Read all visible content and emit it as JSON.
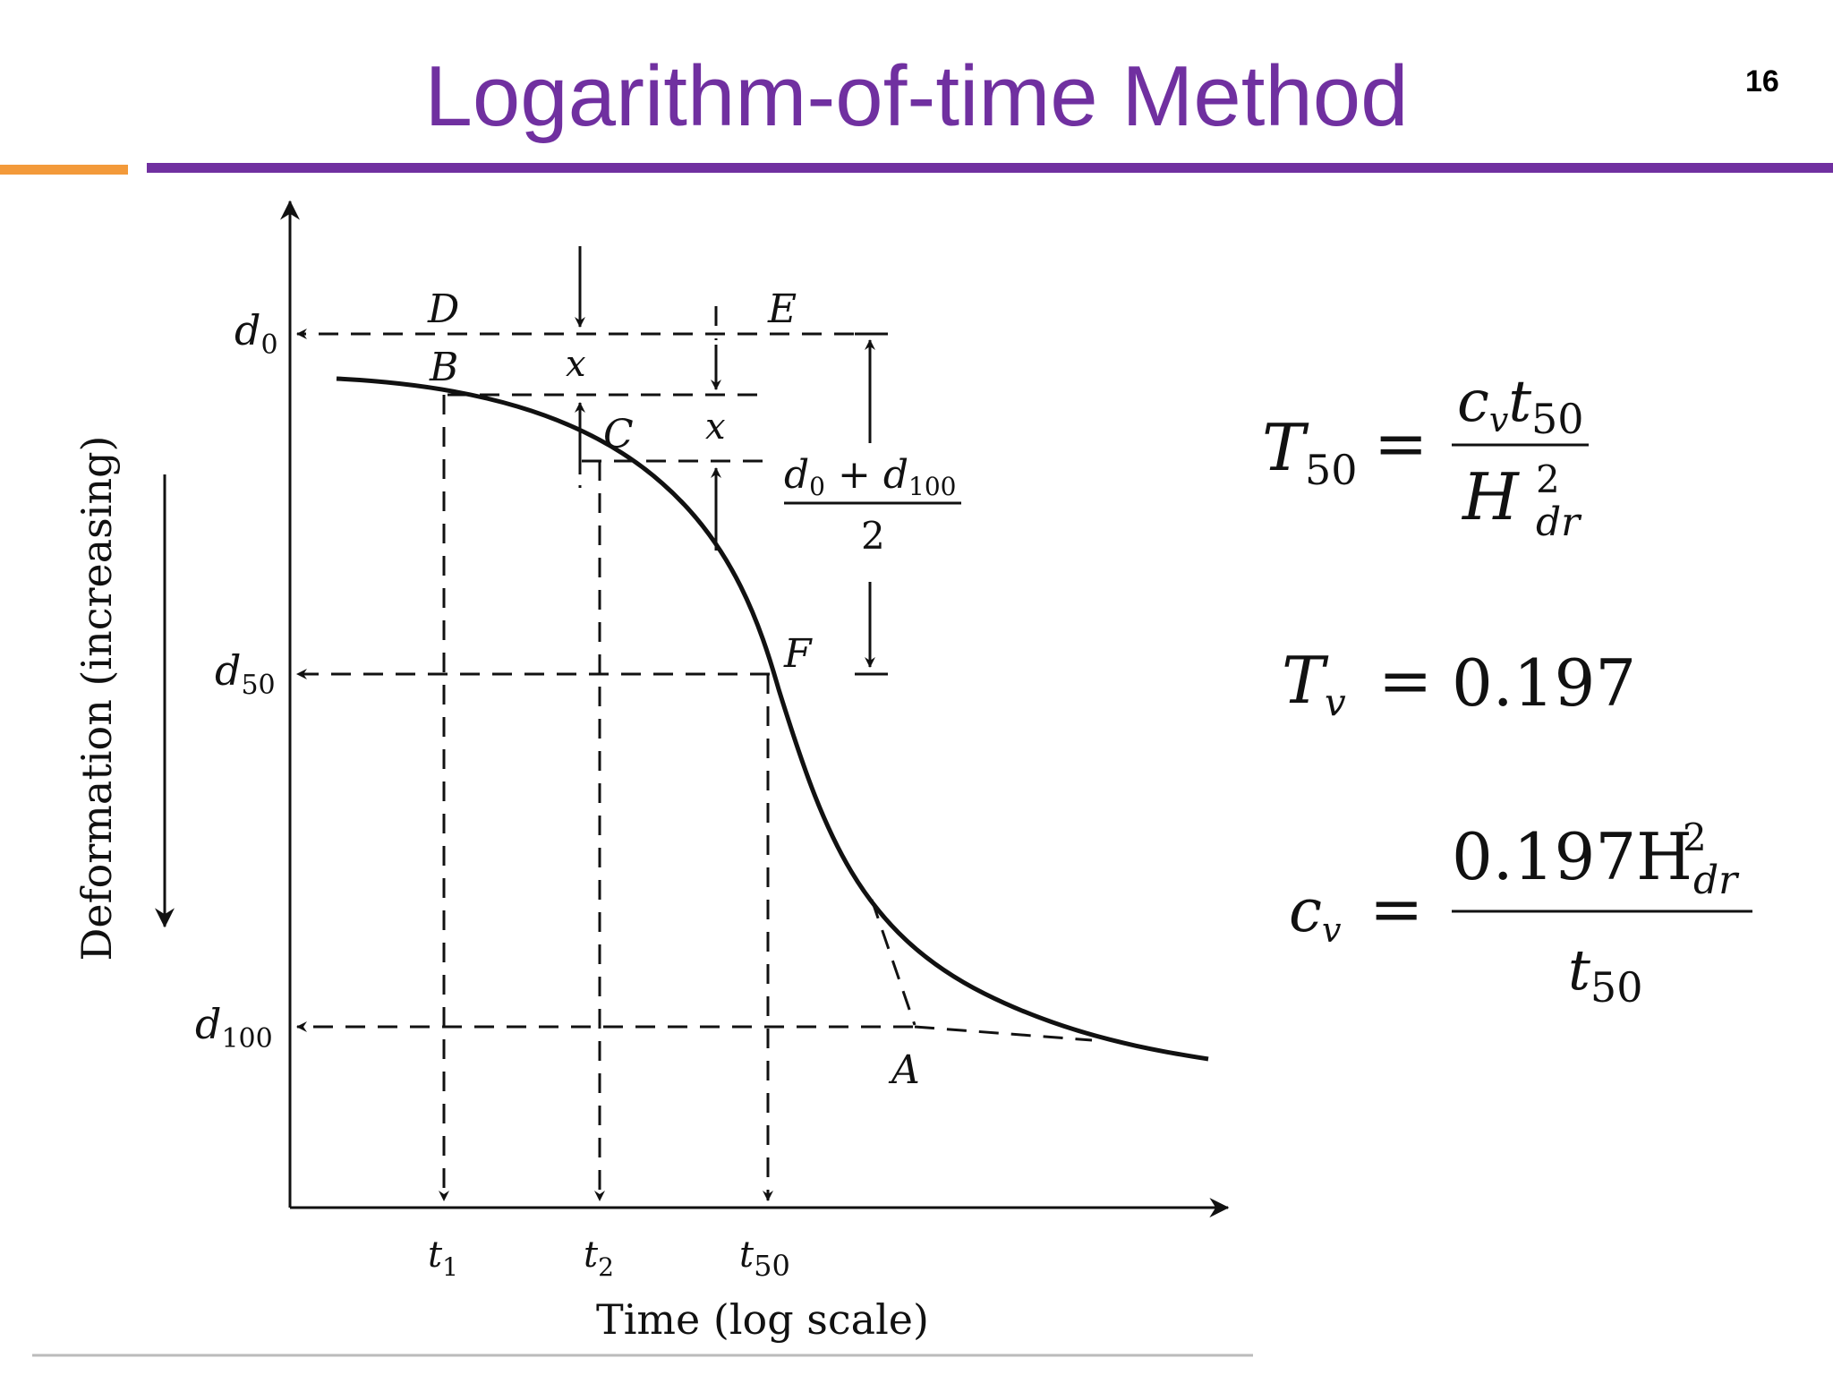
{
  "slide": {
    "title": "Logarithm-of-time Method",
    "page_number": "16",
    "accent_colors": {
      "title": "#7030a0",
      "orange_rule": "#f39a3a",
      "purple_rule": "#7030a0"
    }
  },
  "diagram": {
    "y_axis_label": "Deformation (increasing)",
    "x_axis_label": "Time (log scale)",
    "deformation_levels": {
      "d0": "d",
      "d0_sub": "0",
      "d50": "d",
      "d50_sub": "50",
      "d100": "d",
      "d100_sub": "100"
    },
    "time_ticks": {
      "t1": "t",
      "t1_sub": "1",
      "t2": "t",
      "t2_sub": "2",
      "t50": "t",
      "t50_sub": "50"
    },
    "points": {
      "D": "D",
      "E": "E",
      "B": "B",
      "C": "C",
      "F": "F",
      "A": "A"
    },
    "offset_label": "x",
    "midpoint_expression": {
      "numerator_a": "d",
      "numerator_a_sub": "0",
      "plus": "+",
      "numerator_b": "d",
      "numerator_b_sub": "100",
      "denominator": "2"
    }
  },
  "equations": [
    {
      "lhs": "T",
      "lhs_sub": "50",
      "eq": "=",
      "num": "c",
      "num_sub": "v",
      "num_b": "t",
      "num_b_sub": "50",
      "den": "H",
      "den_sup": "2",
      "den_sub": "dr"
    },
    {
      "lhs": "T",
      "lhs_sub": "v",
      "eq": "=",
      "rhs": "0.197"
    },
    {
      "lhs": "c",
      "lhs_sub": "v",
      "eq": "=",
      "num": "0.197H",
      "num_sup": "2",
      "num_sub": "dr",
      "den": "t",
      "den_sub": "50"
    }
  ]
}
